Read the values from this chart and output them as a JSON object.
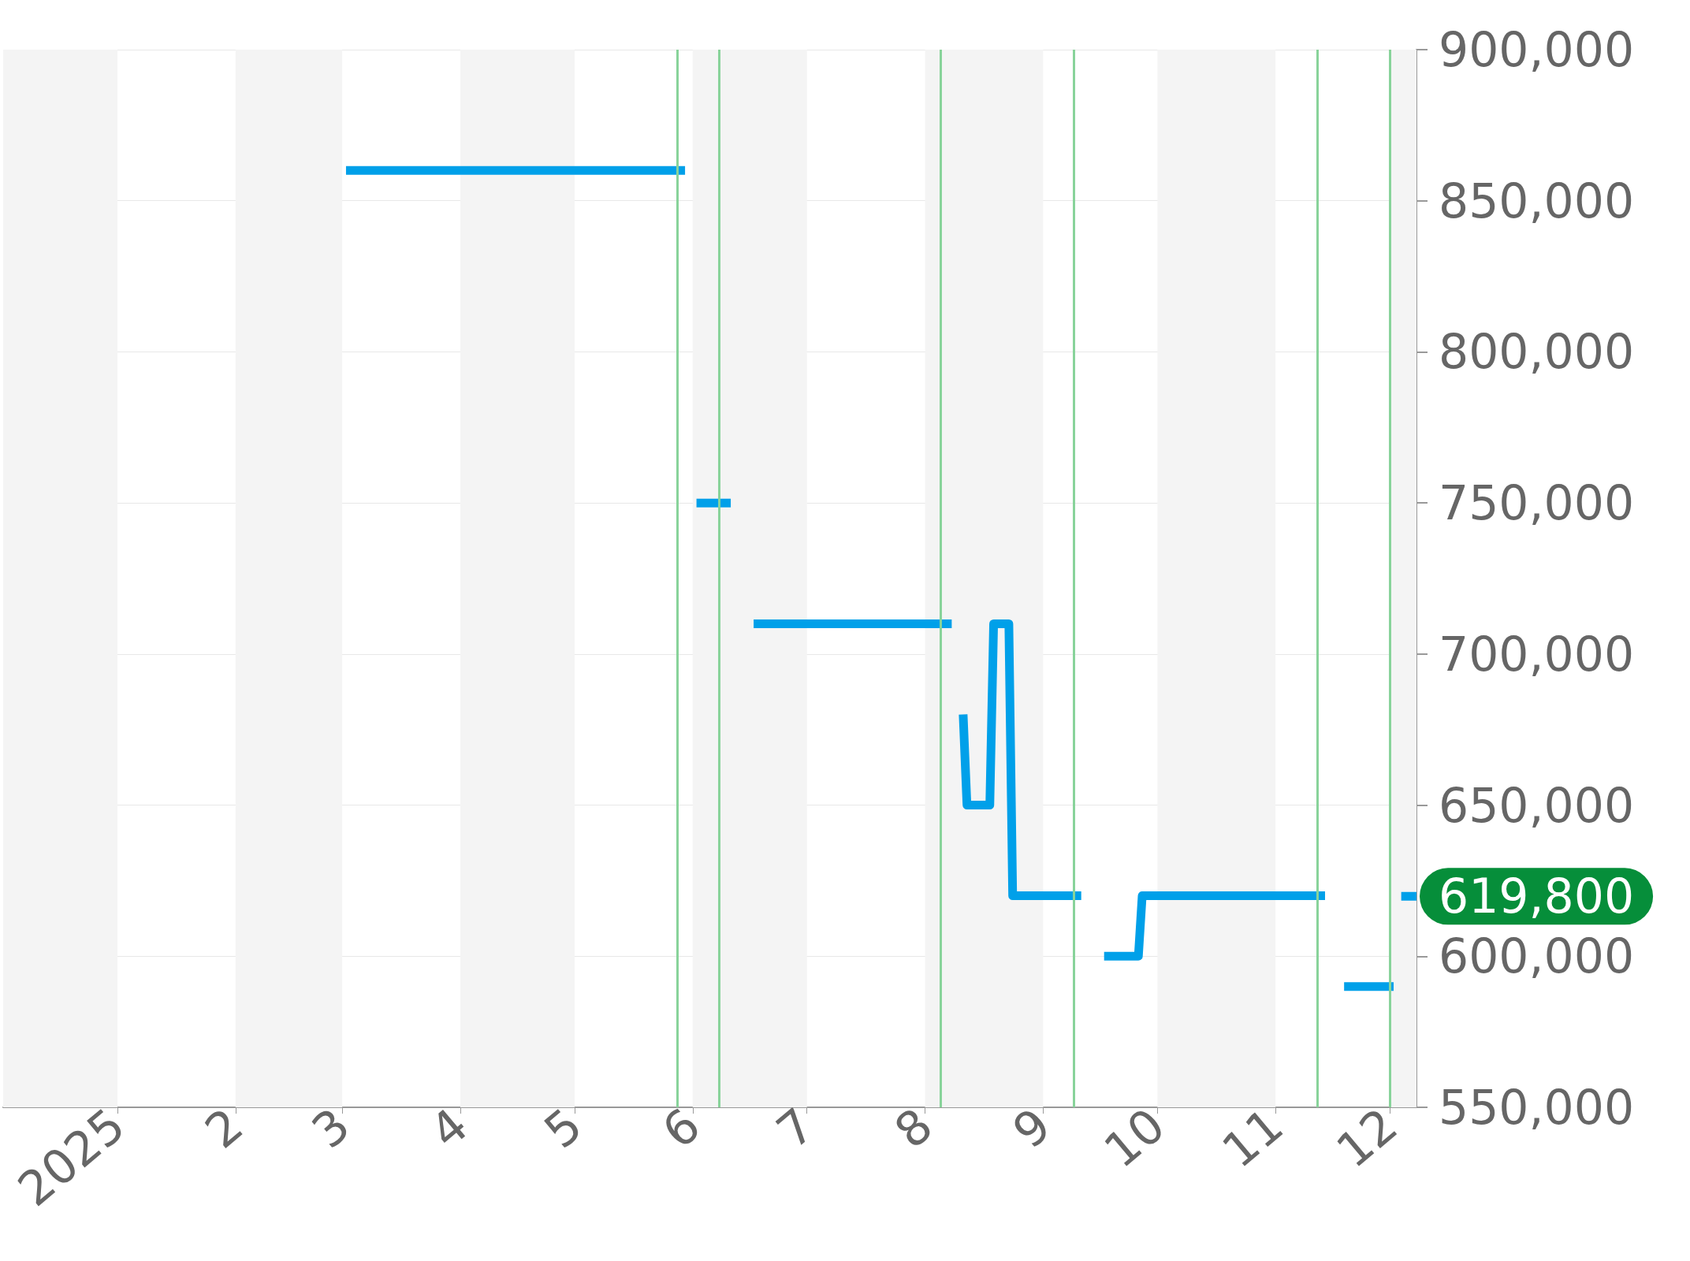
{
  "chart_data": {
    "type": "line",
    "x": [
      "2025-03-02",
      "2025-05-30",
      null,
      "2025-06-02",
      "2025-06-11",
      null,
      "2025-06-17",
      "2025-08-08",
      null,
      "2025-08-11",
      "2025-08-12",
      "2025-08-18",
      "2025-08-19",
      "2025-08-23",
      "2025-08-24",
      "2025-09-11",
      null,
      "2025-09-17",
      "2025-09-26",
      "2025-09-27",
      "2025-11-14",
      null,
      "2025-11-19",
      "2025-12-02",
      null,
      "2025-12-04",
      "2025-12-08"
    ],
    "series": [
      {
        "color": "#00a0e9",
        "values": [
          860000,
          860000,
          null,
          750000,
          750000,
          null,
          710000,
          710000,
          null,
          680000,
          650000,
          650000,
          710000,
          710000,
          620000,
          620000,
          null,
          600000,
          600000,
          620000,
          620000,
          null,
          590000,
          590000,
          null,
          619800,
          619800
        ]
      }
    ],
    "xlim": [
      "2024-12-02",
      "2025-12-08"
    ],
    "xticks": [
      {
        "value": "2025-01-01",
        "label": "2025"
      },
      {
        "value": "2025-02-01",
        "label": "2"
      },
      {
        "value": "2025-03-01",
        "label": "3"
      },
      {
        "value": "2025-04-01",
        "label": "4"
      },
      {
        "value": "2025-05-01",
        "label": "5"
      },
      {
        "value": "2025-06-01",
        "label": "6"
      },
      {
        "value": "2025-07-01",
        "label": "7"
      },
      {
        "value": "2025-08-01",
        "label": "8"
      },
      {
        "value": "2025-09-01",
        "label": "9"
      },
      {
        "value": "2025-10-01",
        "label": "10"
      },
      {
        "value": "2025-11-01",
        "label": "11"
      },
      {
        "value": "2025-12-01",
        "label": "12"
      }
    ],
    "ylim": [
      550000,
      900000
    ],
    "yticks": [
      {
        "value": 550000,
        "label": "550,000"
      },
      {
        "value": 600000,
        "label": "600,000"
      },
      {
        "value": 650000,
        "label": "650,000"
      },
      {
        "value": 700000,
        "label": "700,000"
      },
      {
        "value": 750000,
        "label": "750,000"
      },
      {
        "value": 800000,
        "label": "800,000"
      },
      {
        "value": 850000,
        "label": "850,000"
      },
      {
        "value": 900000,
        "label": "900,000"
      }
    ],
    "grid": "y",
    "marker": "none",
    "line_style": "solid",
    "ref_lines": [
      {
        "axis": "x",
        "value": "2025-05-28",
        "color": "#88d39a"
      },
      {
        "axis": "x",
        "value": "2025-06-08",
        "color": "#88d39a"
      },
      {
        "axis": "x",
        "value": "2025-08-05",
        "color": "#88d39a"
      },
      {
        "axis": "x",
        "value": "2025-09-09",
        "color": "#88d39a"
      },
      {
        "axis": "x",
        "value": "2025-11-12",
        "color": "#88d39a"
      },
      {
        "axis": "x",
        "value": "2025-12-01",
        "color": "#88d39a"
      }
    ],
    "bands": [
      {
        "axis": "x",
        "from": "2024-12-02",
        "to": "2025-01-01",
        "color": "#f4f4f4"
      },
      {
        "axis": "x",
        "from": "2025-02-01",
        "to": "2025-03-01",
        "color": "#f4f4f4"
      },
      {
        "axis": "x",
        "from": "2025-04-01",
        "to": "2025-05-01",
        "color": "#f4f4f4"
      },
      {
        "axis": "x",
        "from": "2025-06-01",
        "to": "2025-07-01",
        "color": "#f4f4f4"
      },
      {
        "axis": "x",
        "from": "2025-08-01",
        "to": "2025-09-01",
        "color": "#f4f4f4"
      },
      {
        "axis": "x",
        "from": "2025-10-01",
        "to": "2025-11-01",
        "color": "#f4f4f4"
      },
      {
        "axis": "x",
        "from": "2025-12-01",
        "to": "2025-12-08",
        "color": "#f4f4f4"
      }
    ],
    "annotations": [
      {
        "text": "619,800",
        "x": "2025-12-08",
        "y": 619800
      }
    ]
  }
}
